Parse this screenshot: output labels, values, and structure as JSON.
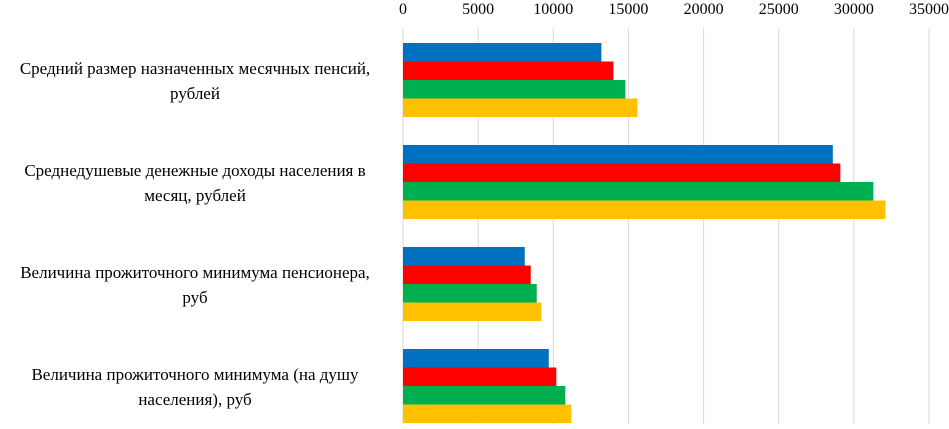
{
  "chart_data": {
    "type": "bar",
    "orientation": "horizontal",
    "title": "",
    "xlabel": "",
    "ylabel": "",
    "xlim": [
      0,
      35000
    ],
    "x_ticks": [
      "0",
      "5000",
      "10000",
      "15000",
      "20000",
      "25000",
      "30000",
      "35000"
    ],
    "x_axis_position": "top",
    "grid": true,
    "legend": "none",
    "categories": [
      [
        "Средний размер назначенных месячных пенсий,",
        "рублей"
      ],
      [
        "Среднедушевые денежные доходы населения в",
        "месяц, рублей"
      ],
      [
        "Величина прожиточного минимума пенсионера,",
        "руб"
      ],
      [
        "Величина прожиточного минимума (на душу",
        "населения), руб"
      ]
    ],
    "series": [
      {
        "color": "#0070c0",
        "values": [
          13200,
          28600,
          8100,
          9700
        ]
      },
      {
        "color": "#ff0000",
        "values": [
          14000,
          29100,
          8500,
          10200
        ]
      },
      {
        "color": "#00b050",
        "values": [
          14800,
          31300,
          8900,
          10800
        ]
      },
      {
        "color": "#ffc000",
        "values": [
          15600,
          32100,
          9200,
          11200
        ]
      }
    ]
  }
}
